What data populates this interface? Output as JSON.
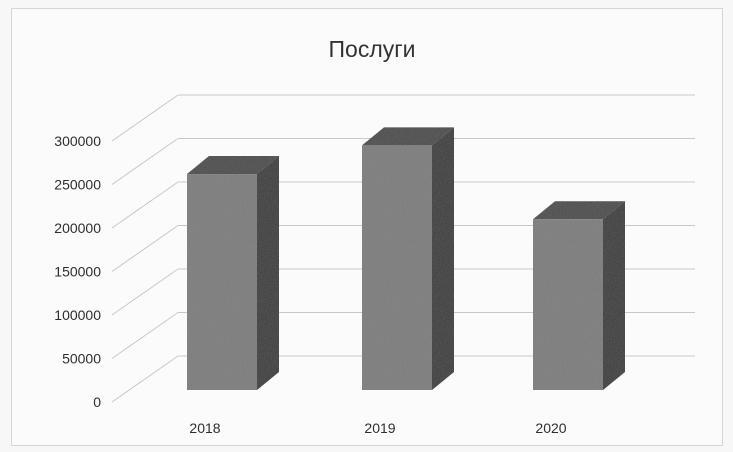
{
  "chart_data": {
    "type": "bar",
    "title": "Послуги",
    "categories": [
      "2018",
      "2019",
      "2020"
    ],
    "values": [
      262000,
      295000,
      210000
    ],
    "ylim": [
      0,
      300000
    ],
    "yticks": [
      "0",
      "50000",
      "100000",
      "150000",
      "200000",
      "250000",
      "300000"
    ],
    "xlabel": "",
    "ylabel": "",
    "grid": true,
    "legend": "none",
    "style": "3d-column",
    "colors": {
      "bar_front": "#7a7a7a",
      "bar_side": "#333333",
      "bar_top": "#454545",
      "grid": "#c8c8c8",
      "text": "#2e2e2e"
    }
  }
}
